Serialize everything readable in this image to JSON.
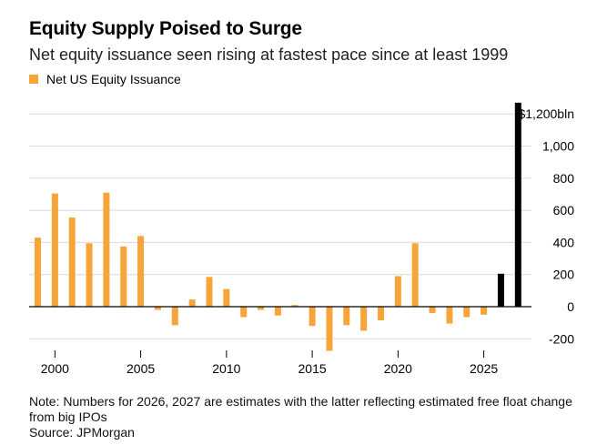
{
  "header": {
    "title": "Equity Supply Poised to Surge",
    "subtitle": "Net equity issuance seen rising at fastest pace since at least 1999"
  },
  "legend": {
    "label": "Net US Equity Issuance",
    "color": "#f7a43b"
  },
  "footer": {
    "note": "Note: Numbers for 2026, 2027 are estimates with the latter reflecting estimated free float change from big IPOs",
    "source": "Source: JPMorgan"
  },
  "colors": {
    "actual": "#f7a43b",
    "estimate": "#000000",
    "grid": "#d9d9d9",
    "zero": "#000000"
  },
  "chart_data": {
    "type": "bar",
    "x": [
      1999,
      2000,
      2001,
      2002,
      2003,
      2004,
      2005,
      2006,
      2007,
      2008,
      2009,
      2010,
      2011,
      2012,
      2013,
      2014,
      2015,
      2016,
      2017,
      2018,
      2019,
      2020,
      2021,
      2022,
      2023,
      2024,
      2025,
      2026,
      2027
    ],
    "values": [
      430,
      705,
      555,
      395,
      710,
      375,
      440,
      -20,
      -115,
      45,
      185,
      110,
      -65,
      -20,
      -55,
      10,
      -120,
      -275,
      -115,
      -150,
      -85,
      190,
      395,
      -40,
      -105,
      -65,
      -50,
      205,
      1270
    ],
    "estimate_years": [
      2026,
      2027
    ],
    "x_ticks": [
      "2000",
      "2005",
      "2010",
      "2015",
      "2020",
      "2025"
    ],
    "y_ticks": [
      "$1,200bln",
      "1,000",
      "800",
      "600",
      "400",
      "200",
      "0",
      "-200"
    ],
    "ylim": [
      -280,
      1280
    ],
    "y_axis_side": "right",
    "grid": true
  }
}
